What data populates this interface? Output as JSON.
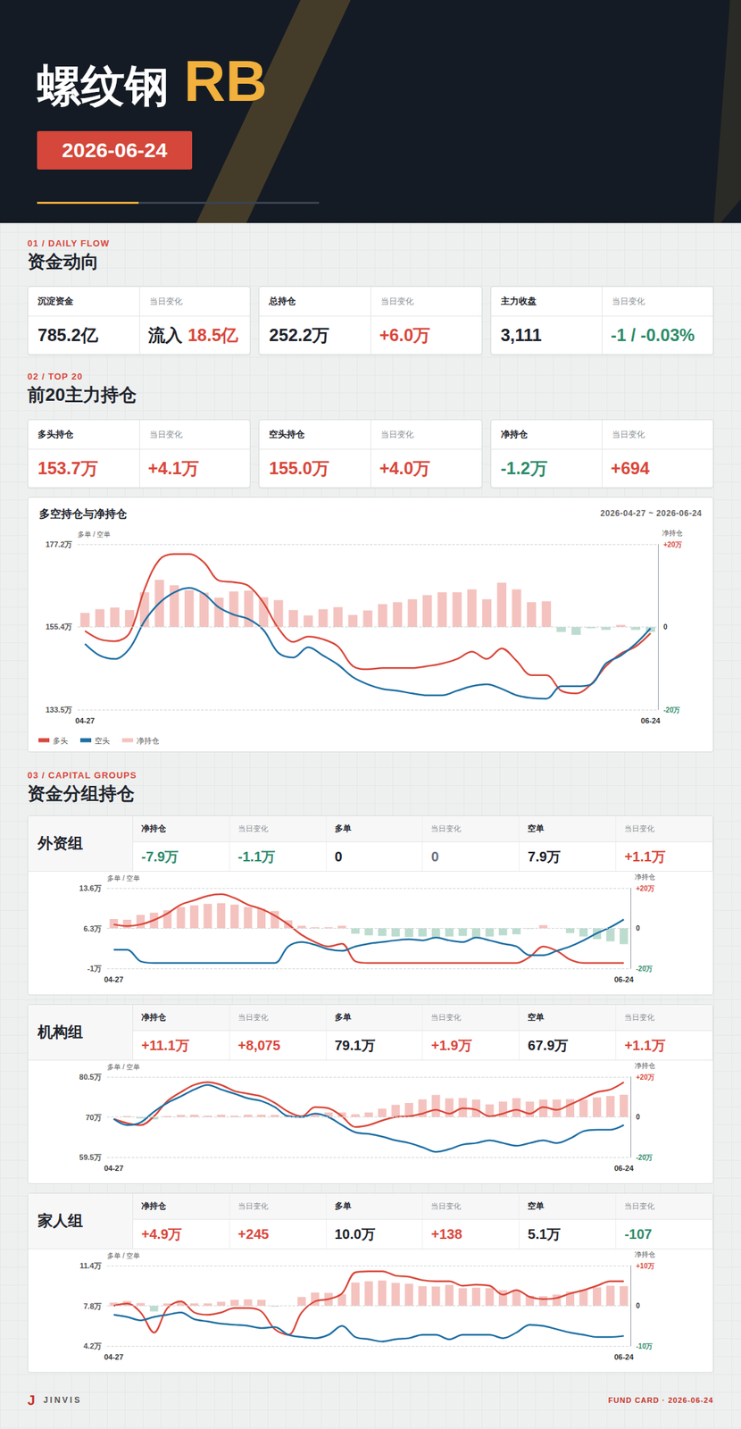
{
  "header": {
    "title": "螺纹钢",
    "code": "RB",
    "date": "2026-06-24"
  },
  "change_label": "当日变化",
  "daily_flow": {
    "section_label": "01 / DAILY FLOW",
    "title": "资金动向",
    "cards": [
      {
        "label": "沉淀资金",
        "value": {
          "text": "785.2亿",
          "color": "#1d232b"
        },
        "change": {
          "prefix": "流入",
          "text": "18.5亿",
          "color": "#d9473b"
        }
      },
      {
        "label": "总持仓",
        "value": {
          "text": "252.2万",
          "color": "#1d232b"
        },
        "change": {
          "text": "+6.0万",
          "color": "#d9473b"
        }
      },
      {
        "label": "主力收盘",
        "value": {
          "text": "3,111",
          "color": "#1d232b"
        },
        "change": {
          "text": "-1 / -0.03%",
          "color": "#2e8b6a"
        }
      }
    ]
  },
  "top20": {
    "section_label": "02 / TOP 20",
    "title": "前20主力持仓",
    "cards": [
      {
        "label": "多头持仓",
        "value": {
          "text": "153.7万",
          "color": "#d9473b"
        },
        "change": {
          "text": "+4.1万",
          "color": "#d9473b"
        }
      },
      {
        "label": "空头持仓",
        "value": {
          "text": "155.0万",
          "color": "#d9473b"
        },
        "change": {
          "text": "+4.0万",
          "color": "#d9473b"
        }
      },
      {
        "label": "净持仓",
        "value": {
          "text": "-1.2万",
          "color": "#2e8b6a"
        },
        "change": {
          "text": "+694",
          "color": "#d9473b"
        }
      }
    ]
  },
  "capital_groups": {
    "section_label": "03 / CAPITAL GROUPS",
    "title": "资金分组持仓",
    "groups": [
      {
        "name": "外资组",
        "columns": [
          {
            "label": "净持仓",
            "value": {
              "text": "-7.9万",
              "color": "#2e8b6a"
            },
            "change": {
              "text": "-1.1万",
              "color": "#2e8b6a"
            }
          },
          {
            "label": "多单",
            "value": {
              "text": "0",
              "color": "#1d232b"
            },
            "change": {
              "text": "0",
              "color": "#6b7280"
            }
          },
          {
            "label": "空单",
            "value": {
              "text": "7.9万",
              "color": "#1d232b"
            },
            "change": {
              "text": "+1.1万",
              "color": "#d9473b"
            }
          }
        ]
      },
      {
        "name": "机构组",
        "columns": [
          {
            "label": "净持仓",
            "value": {
              "text": "+11.1万",
              "color": "#d9473b"
            },
            "change": {
              "text": "+8,075",
              "color": "#d9473b"
            }
          },
          {
            "label": "多单",
            "value": {
              "text": "79.1万",
              "color": "#1d232b"
            },
            "change": {
              "text": "+1.9万",
              "color": "#d9473b"
            }
          },
          {
            "label": "空单",
            "value": {
              "text": "67.9万",
              "color": "#1d232b"
            },
            "change": {
              "text": "+1.1万",
              "color": "#d9473b"
            }
          }
        ]
      },
      {
        "name": "家人组",
        "columns": [
          {
            "label": "净持仓",
            "value": {
              "text": "+4.9万",
              "color": "#d9473b"
            },
            "change": {
              "text": "+245",
              "color": "#d9473b"
            }
          },
          {
            "label": "多单",
            "value": {
              "text": "10.0万",
              "color": "#1d232b"
            },
            "change": {
              "text": "+138",
              "color": "#d9473b"
            }
          },
          {
            "label": "空单",
            "value": {
              "text": "5.1万",
              "color": "#1d232b"
            },
            "change": {
              "text": "-107",
              "color": "#2e8b6a"
            }
          }
        ]
      }
    ]
  },
  "chart_data": [
    {
      "type": "line",
      "title": "多空持仓与净持仓",
      "subtitle": "2026-04-27 ~ 2026-06-24",
      "categories": [
        "04-27",
        null,
        null,
        null,
        null,
        null,
        null,
        null,
        null,
        null,
        null,
        null,
        null,
        null,
        null,
        null,
        null,
        null,
        null,
        null,
        null,
        null,
        null,
        null,
        null,
        null,
        null,
        null,
        null,
        null,
        null,
        null,
        null,
        null,
        null,
        null,
        null,
        null,
        "06-24"
      ],
      "ylabel": "多单 / 空单",
      "y2label": "净持仓",
      "ylim": [
        133.5,
        177.2
      ],
      "yticks": [
        {
          "value": 133.5,
          "label": "133.5万"
        },
        {
          "value": 155.4,
          "label": "155.4万"
        },
        {
          "value": 177.2,
          "label": "177.2万"
        }
      ],
      "y2lim": [
        -20,
        20
      ],
      "y2ticks": [
        {
          "value": -20,
          "label": "-20万"
        },
        0,
        {
          "value": 20,
          "label": "+20万"
        }
      ],
      "grid": true,
      "legend": "bottom left",
      "series": [
        {
          "name": "多头",
          "color": "#d9483b",
          "values": [
            154.3,
            152.1,
            151.6,
            153.8,
            165.3,
            173.1,
            174.6,
            174.6,
            172.4,
            167.6,
            167.2,
            166.2,
            161.7,
            155.0,
            151.4,
            152.8,
            152.1,
            150.2,
            145.0,
            144.2,
            144.5,
            144.5,
            144.5,
            145.0,
            145.7,
            146.9,
            148.8,
            146.9,
            149.7,
            146.4,
            142.6,
            142.6,
            138.5,
            137.8,
            140.2,
            145.0,
            148.3,
            150.2,
            153.7
          ]
        },
        {
          "name": "空头",
          "color": "#1f6fa3",
          "values": [
            150.9,
            147.8,
            146.9,
            149.7,
            156.9,
            161.7,
            164.5,
            165.7,
            164.1,
            160.5,
            158.6,
            157.4,
            154.5,
            148.5,
            147.3,
            150.0,
            147.8,
            145.4,
            142.1,
            140.2,
            139.0,
            138.5,
            137.8,
            137.3,
            137.3,
            138.5,
            139.7,
            140.2,
            139.0,
            137.3,
            136.6,
            136.4,
            139.7,
            139.7,
            140.2,
            145.7,
            147.8,
            150.9,
            155.0
          ]
        },
        {
          "name": "净持仓",
          "type": "bar",
          "axis": "y2",
          "color": "#f4c3bf",
          "values": [
            3.4,
            4.3,
            4.7,
            4.1,
            8.4,
            11.4,
            10.1,
            8.9,
            8.3,
            7.1,
            8.6,
            8.8,
            7.2,
            6.5,
            4.1,
            2.8,
            4.3,
            4.8,
            2.9,
            4.0,
            5.5,
            6.0,
            6.7,
            7.7,
            8.4,
            8.4,
            9.1,
            6.7,
            10.7,
            9.1,
            6.0,
            6.2,
            -1.2,
            -1.9,
            -0.3,
            -0.7,
            0.5,
            -0.7,
            -1.2
          ]
        }
      ]
    },
    {
      "type": "line",
      "categories": [
        "04-27",
        null,
        null,
        null,
        null,
        null,
        null,
        null,
        null,
        null,
        null,
        null,
        null,
        null,
        null,
        null,
        null,
        null,
        null,
        null,
        null,
        null,
        null,
        null,
        null,
        null,
        null,
        null,
        null,
        null,
        null,
        null,
        null,
        null,
        null,
        null,
        null,
        null,
        "06-24"
      ],
      "ylabel": "多单 / 空单",
      "y2label": "净持仓",
      "ylim": [
        -1,
        13.6
      ],
      "yticks": [
        {
          "value": -1,
          "label": "-1万"
        },
        {
          "value": 6.3,
          "label": "6.3万"
        },
        {
          "value": 13.6,
          "label": "13.6万"
        }
      ],
      "y2lim": [
        -20,
        20
      ],
      "y2ticks": [
        {
          "value": -20,
          "label": "-20万"
        },
        0,
        {
          "value": 20,
          "label": "+20万"
        }
      ],
      "grid": true,
      "series": [
        {
          "name": "多单",
          "color": "#d9483b",
          "values": [
            7.0,
            6.7,
            7.0,
            7.8,
            9.0,
            10.6,
            11.4,
            12.2,
            12.5,
            11.8,
            10.6,
            9.8,
            8.6,
            7.0,
            5.1,
            3.8,
            3.0,
            3.5,
            0.3,
            0,
            0,
            0,
            0,
            0,
            0,
            0,
            0,
            0,
            0,
            0,
            0,
            1.1,
            3.0,
            2.2,
            0.6,
            0,
            0,
            0,
            0
          ]
        },
        {
          "name": "空单",
          "color": "#1f6fa3",
          "values": [
            2.4,
            2.4,
            0.3,
            0,
            0,
            0,
            0,
            0,
            0,
            0,
            0,
            0,
            0,
            3.0,
            3.8,
            3.3,
            2.5,
            2.2,
            3.0,
            3.5,
            3.8,
            4.1,
            4.3,
            4.1,
            4.6,
            4.1,
            3.8,
            4.6,
            4.1,
            3.5,
            3.0,
            1.4,
            1.4,
            2.2,
            3.0,
            4.1,
            5.4,
            6.5,
            7.9
          ]
        },
        {
          "name": "净持仓",
          "type": "bar",
          "axis": "y2",
          "color": "#f4c3bf",
          "values": [
            4.6,
            4.3,
            6.7,
            7.8,
            9.0,
            10.6,
            11.4,
            12.2,
            12.5,
            11.8,
            10.6,
            9.8,
            8.6,
            4.0,
            1.3,
            0.5,
            0.5,
            1.3,
            -2.7,
            -3.5,
            -3.8,
            -4.1,
            -4.3,
            -4.1,
            -4.6,
            -4.1,
            -3.8,
            -4.6,
            -4.1,
            -3.5,
            -3.0,
            -0.3,
            1.6,
            0.0,
            -2.4,
            -4.1,
            -5.4,
            -6.5,
            -7.9
          ]
        }
      ]
    },
    {
      "type": "line",
      "categories": [
        "04-27",
        null,
        null,
        null,
        null,
        null,
        null,
        null,
        null,
        null,
        null,
        null,
        null,
        null,
        null,
        null,
        null,
        null,
        null,
        null,
        null,
        null,
        null,
        null,
        null,
        null,
        null,
        null,
        null,
        null,
        null,
        null,
        null,
        null,
        null,
        null,
        null,
        null,
        "06-24"
      ],
      "ylabel": "多单 / 空单",
      "y2label": "净持仓",
      "ylim": [
        59.5,
        80.5
      ],
      "yticks": [
        {
          "value": 59.5,
          "label": "59.5万"
        },
        {
          "value": 70,
          "label": "70万"
        },
        {
          "value": 80.5,
          "label": "80.5万"
        }
      ],
      "y2lim": [
        -20,
        20
      ],
      "y2ticks": [
        {
          "value": -20,
          "label": "-20万"
        },
        0,
        {
          "value": 20,
          "label": "+20万"
        }
      ],
      "grid": true,
      "series": [
        {
          "name": "多单",
          "color": "#d9483b",
          "values": [
            69.5,
            68.4,
            67.9,
            70.2,
            74.2,
            76.5,
            78.4,
            79.1,
            78.4,
            76.8,
            76.1,
            75.4,
            73.7,
            71.4,
            70.2,
            72.6,
            72.3,
            70.2,
            67.4,
            67.9,
            69.1,
            70.0,
            70.2,
            70.9,
            71.9,
            70.9,
            72.3,
            71.9,
            70.2,
            70.9,
            71.9,
            70.9,
            72.6,
            71.9,
            73.3,
            74.9,
            76.5,
            77.2,
            79.1
          ]
        },
        {
          "name": "空单",
          "color": "#1f6fa3",
          "values": [
            69.5,
            67.9,
            68.6,
            71.4,
            73.7,
            75.4,
            77.2,
            78.4,
            77.2,
            76.1,
            74.9,
            74.2,
            72.6,
            70.2,
            70.0,
            70.9,
            70.0,
            67.9,
            66.0,
            65.6,
            64.9,
            63.9,
            63.2,
            62.1,
            60.9,
            61.6,
            62.8,
            63.2,
            63.9,
            63.2,
            62.5,
            63.2,
            63.9,
            63.2,
            64.4,
            66.3,
            66.7,
            66.7,
            67.9
          ]
        },
        {
          "name": "净持仓",
          "type": "bar",
          "axis": "y2",
          "color": "#f4c3bf",
          "values": [
            0.0,
            0.5,
            -0.7,
            -1.2,
            0.5,
            1.1,
            1.2,
            0.7,
            1.2,
            0.7,
            1.2,
            1.2,
            1.1,
            1.2,
            0.2,
            1.7,
            2.3,
            2.3,
            1.4,
            2.3,
            4.2,
            6.1,
            7.0,
            8.8,
            11.0,
            9.3,
            9.5,
            8.7,
            6.3,
            7.7,
            9.4,
            7.7,
            8.7,
            8.7,
            8.9,
            8.6,
            9.8,
            10.5,
            11.1
          ]
        }
      ]
    },
    {
      "type": "line",
      "categories": [
        "04-27",
        null,
        null,
        null,
        null,
        null,
        null,
        null,
        null,
        null,
        null,
        null,
        null,
        null,
        null,
        null,
        null,
        null,
        null,
        null,
        null,
        null,
        null,
        null,
        null,
        null,
        null,
        null,
        null,
        null,
        null,
        null,
        null,
        null,
        null,
        null,
        null,
        null,
        "06-24"
      ],
      "ylabel": "多单 / 空单",
      "y2label": "净持仓",
      "ylim": [
        4.2,
        11.4
      ],
      "yticks": [
        {
          "value": 4.2,
          "label": "4.2万"
        },
        {
          "value": 7.8,
          "label": "7.8万"
        },
        {
          "value": 11.4,
          "label": "11.4万"
        }
      ],
      "y2lim": [
        -10,
        10
      ],
      "y2ticks": [
        {
          "value": -10,
          "label": "-10万"
        },
        0,
        {
          "value": 10,
          "label": "+10万"
        }
      ],
      "grid": true,
      "series": [
        {
          "name": "多单",
          "color": "#d9483b",
          "values": [
            7.8,
            8.0,
            7.2,
            5.4,
            7.6,
            8.2,
            7.2,
            7.0,
            7.2,
            7.6,
            7.6,
            7.3,
            5.7,
            5.2,
            7.2,
            8.2,
            8.4,
            8.9,
            10.8,
            10.9,
            10.9,
            10.5,
            10.4,
            10.1,
            10.0,
            10.0,
            9.6,
            9.7,
            9.6,
            8.8,
            9.2,
            8.6,
            8.4,
            8.5,
            8.9,
            9.2,
            9.6,
            10.0,
            10.0
          ]
        },
        {
          "name": "空单",
          "color": "#1f6fa3",
          "values": [
            7.0,
            6.8,
            6.5,
            6.8,
            7.0,
            7.2,
            6.6,
            6.4,
            6.2,
            6.1,
            6.0,
            5.8,
            5.9,
            5.2,
            5.0,
            4.9,
            5.2,
            6.0,
            5.0,
            4.8,
            4.6,
            4.8,
            4.9,
            5.2,
            5.2,
            4.8,
            5.2,
            5.2,
            5.2,
            4.9,
            5.4,
            6.1,
            6.0,
            5.7,
            5.4,
            5.2,
            5.0,
            5.0,
            5.1
          ]
        },
        {
          "name": "净持仓",
          "type": "bar",
          "axis": "y2",
          "color": "#f4c3bf",
          "values": [
            0.8,
            1.2,
            0.7,
            -1.4,
            0.6,
            1.0,
            0.6,
            0.6,
            1.0,
            1.5,
            1.6,
            1.5,
            -0.2,
            0.0,
            2.2,
            3.3,
            3.2,
            2.9,
            5.8,
            6.1,
            6.3,
            5.7,
            5.5,
            4.9,
            4.8,
            5.2,
            4.4,
            4.5,
            4.4,
            3.9,
            3.8,
            2.5,
            2.4,
            2.8,
            3.5,
            4.0,
            4.6,
            5.0,
            4.9
          ]
        }
      ]
    }
  ],
  "footer": {
    "logo": "J",
    "brand": "JINVIS",
    "tag": "FUND CARD · 2026-06-24"
  }
}
